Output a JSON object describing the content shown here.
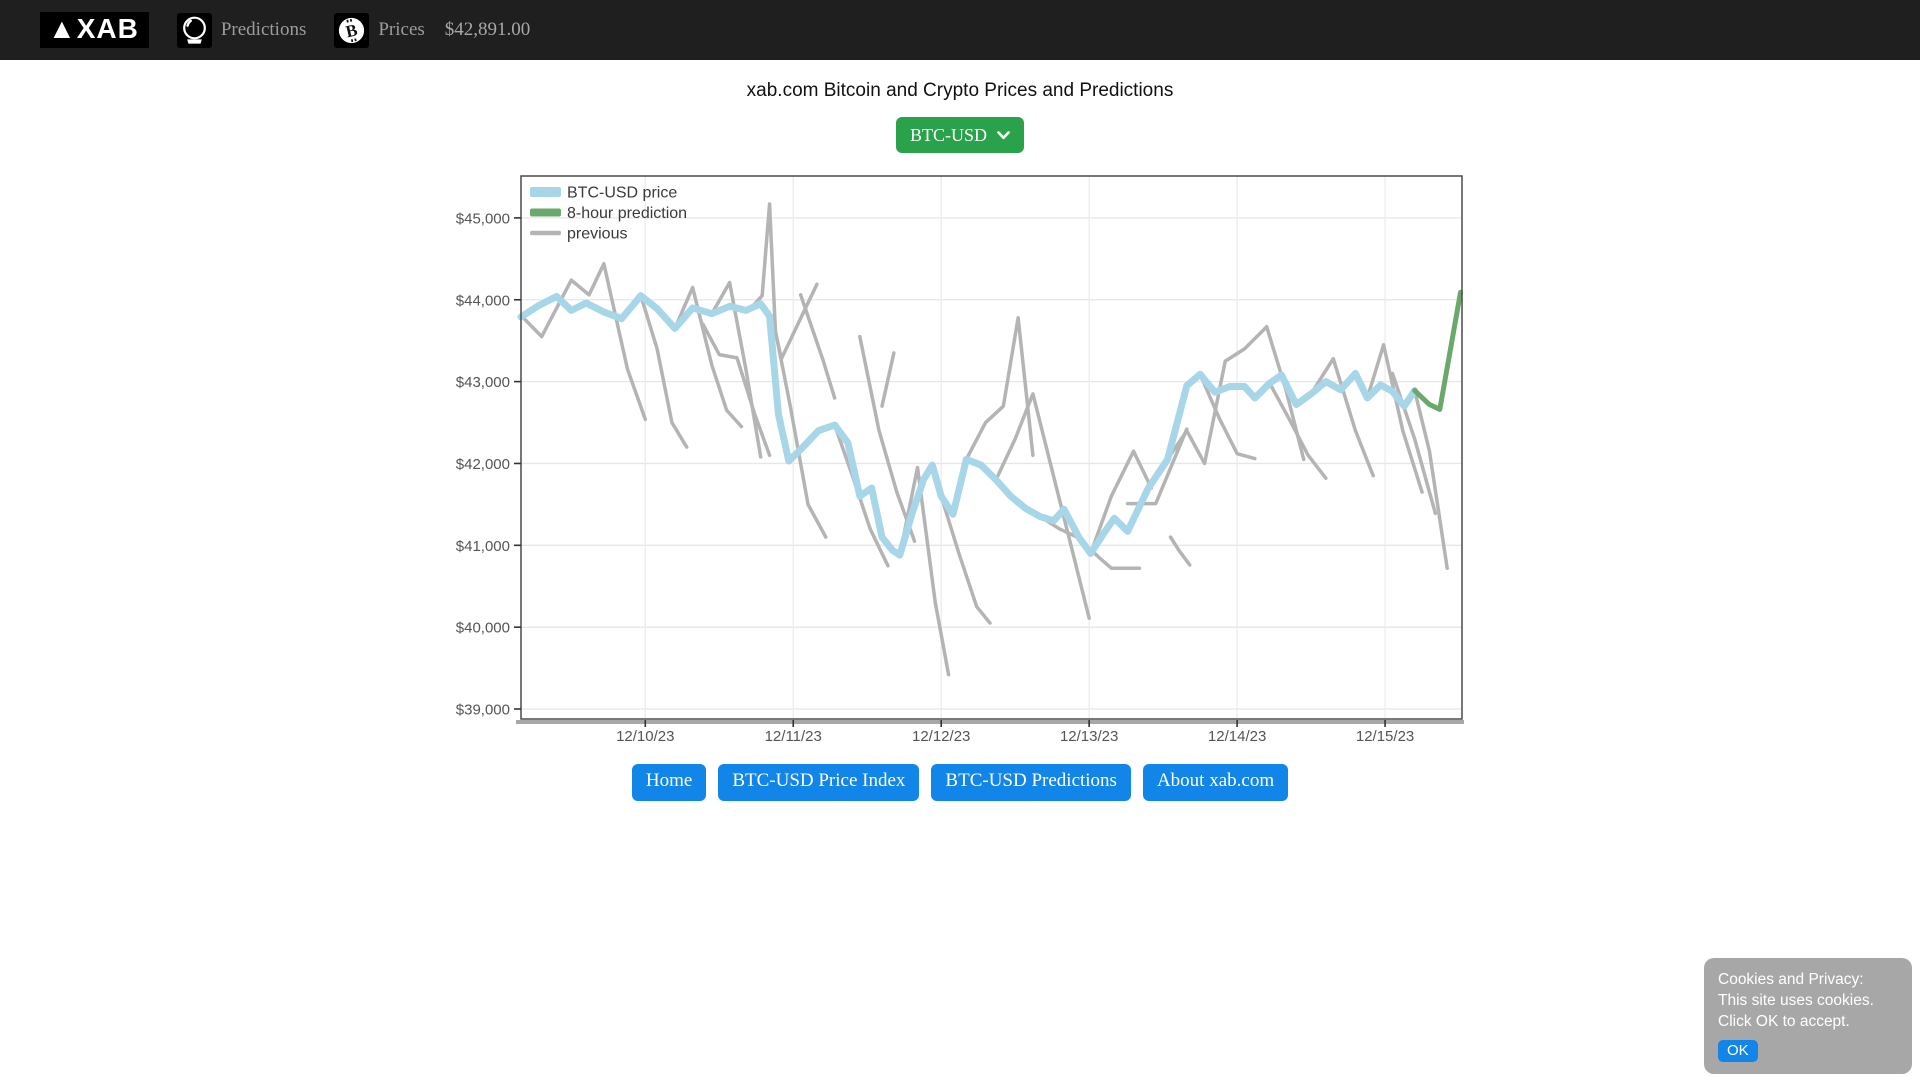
{
  "nav": {
    "logo_text": "▲XAB",
    "links": [
      {
        "label": "Predictions",
        "icon": "crystal-ball-icon"
      },
      {
        "label": "Prices",
        "icon": "bitcoin-icon"
      }
    ],
    "price": "$42,891.00"
  },
  "page": {
    "title": "xab.com Bitcoin and Crypto Prices and Predictions"
  },
  "pair_selector": {
    "value": "BTC-USD"
  },
  "footer_buttons": [
    {
      "label": "Home"
    },
    {
      "label": "BTC-USD Price Index"
    },
    {
      "label": "BTC-USD Predictions"
    },
    {
      "label": "About xab.com"
    }
  ],
  "cookie_notice": {
    "lines": [
      "Cookies and Privacy:",
      "This site uses cookies.",
      "Click OK to accept."
    ],
    "ok_label": "OK"
  },
  "colors": {
    "nav_bg": "#1f1f1f",
    "accent_green": "#2aa24b",
    "accent_blue": "#1285e9",
    "price_line": "#a8d6e9",
    "prediction_line": "#6ba86b",
    "previous_line": "#b4b4b4"
  },
  "chart_data": {
    "type": "line",
    "title": "",
    "xlabel": "",
    "ylabel": "",
    "x_domain_days": [
      0.16,
      6.52
    ],
    "y_domain": [
      38878,
      45512
    ],
    "grid": true,
    "legend_position": "top-left",
    "x_ticks": [
      {
        "day": 1,
        "label": "12/10/23"
      },
      {
        "day": 2,
        "label": "12/11/23"
      },
      {
        "day": 3,
        "label": "12/12/23"
      },
      {
        "day": 4,
        "label": "12/13/23"
      },
      {
        "day": 5,
        "label": "12/14/23"
      },
      {
        "day": 6,
        "label": "12/15/23"
      }
    ],
    "y_ticks": [
      {
        "value": 39000,
        "label": "$39,000"
      },
      {
        "value": 40000,
        "label": "$40,000"
      },
      {
        "value": 41000,
        "label": "$41,000"
      },
      {
        "value": 42000,
        "label": "$42,000"
      },
      {
        "value": 43000,
        "label": "$43,000"
      },
      {
        "value": 44000,
        "label": "$44,000"
      },
      {
        "value": 45000,
        "label": "$45,000"
      }
    ],
    "legend": [
      {
        "label": "BTC-USD price",
        "color": "#a8d6e9",
        "swatch_height": 10
      },
      {
        "label": "8-hour prediction",
        "color": "#6ba86b",
        "swatch_height": 8
      },
      {
        "label": "previous",
        "color": "#b4b4b4",
        "swatch_height": 4.5
      }
    ],
    "series": [
      {
        "name": "previous",
        "color": "#b4b4b4",
        "width": 3.5,
        "polylines": [
          [
            [
              0.17,
              43790
            ],
            [
              0.3,
              43550
            ],
            [
              0.5,
              44240
            ],
            [
              0.62,
              44060
            ],
            [
              0.72,
              44440
            ],
            [
              0.88,
              43150
            ],
            [
              1.0,
              42540
            ]
          ],
          [
            [
              0.97,
              44050
            ],
            [
              1.08,
              43400
            ],
            [
              1.18,
              42500
            ],
            [
              1.28,
              42200
            ]
          ],
          [
            [
              1.2,
              43650
            ],
            [
              1.32,
              44150
            ],
            [
              1.45,
              43200
            ],
            [
              1.55,
              42650
            ],
            [
              1.65,
              42450
            ]
          ],
          [
            [
              1.39,
              43700
            ],
            [
              1.5,
              43330
            ],
            [
              1.62,
              43290
            ],
            [
              1.74,
              42600
            ],
            [
              1.84,
              42100
            ]
          ],
          [
            [
              1.45,
              43830
            ],
            [
              1.57,
              44210
            ],
            [
              1.68,
              43150
            ],
            [
              1.78,
              42080
            ]
          ],
          [
            [
              1.7,
              43870
            ],
            [
              1.79,
              44050
            ],
            [
              1.84,
              45170
            ],
            [
              1.88,
              43600
            ],
            [
              1.92,
              43280
            ],
            [
              2.16,
              44190
            ]
          ],
          [
            [
              2.05,
              44060
            ],
            [
              2.2,
              43270
            ],
            [
              2.28,
              42800
            ]
          ],
          [
            [
              1.86,
              43800
            ],
            [
              1.98,
              42700
            ],
            [
              2.1,
              41500
            ],
            [
              2.22,
              41100
            ]
          ],
          [
            [
              2.28,
              42470
            ],
            [
              2.4,
              41850
            ],
            [
              2.52,
              41200
            ],
            [
              2.64,
              40750
            ]
          ],
          [
            [
              2.45,
              43550
            ],
            [
              2.58,
              42400
            ],
            [
              2.7,
              41650
            ],
            [
              2.82,
              41050
            ]
          ],
          [
            [
              2.6,
              42700
            ],
            [
              2.68,
              43350
            ]
          ],
          [
            [
              2.72,
              40880
            ],
            [
              2.84,
              41950
            ],
            [
              2.96,
              40300
            ],
            [
              3.05,
              39420
            ]
          ],
          [
            [
              3.0,
              41600
            ],
            [
              3.12,
              40900
            ],
            [
              3.24,
              40250
            ],
            [
              3.33,
              40050
            ]
          ],
          [
            [
              3.17,
              42050
            ],
            [
              3.3,
              42500
            ],
            [
              3.42,
              42700
            ],
            [
              3.52,
              43780
            ],
            [
              3.62,
              42100
            ]
          ],
          [
            [
              3.37,
              41800
            ],
            [
              3.5,
              42300
            ],
            [
              3.62,
              42850
            ],
            [
              3.87,
              41050
            ],
            [
              4.0,
              40110
            ]
          ],
          [
            [
              3.67,
              41350
            ],
            [
              3.8,
              41200
            ],
            [
              3.92,
              41100
            ],
            [
              4.08,
              40830
            ],
            [
              4.15,
              40720
            ],
            [
              4.34,
              40720
            ]
          ],
          [
            [
              4.55,
              41100
            ],
            [
              4.61,
              40930
            ],
            [
              4.68,
              40760
            ]
          ],
          [
            [
              4.01,
              40900
            ],
            [
              4.15,
              41600
            ],
            [
              4.3,
              42150
            ],
            [
              4.42,
              41700
            ]
          ],
          [
            [
              4.26,
              41510
            ],
            [
              4.45,
              41510
            ],
            [
              4.66,
              42420
            ]
          ],
          [
            [
              4.53,
              42050
            ],
            [
              4.66,
              42400
            ],
            [
              4.78,
              42000
            ],
            [
              4.92,
              43250
            ],
            [
              5.05,
              43400
            ],
            [
              5.2,
              43670
            ],
            [
              5.33,
              42900
            ],
            [
              5.45,
              42050
            ]
          ],
          [
            [
              4.75,
              43090
            ],
            [
              4.88,
              42550
            ],
            [
              5.0,
              42120
            ],
            [
              5.12,
              42060
            ]
          ],
          [
            [
              5.22,
              42980
            ],
            [
              5.35,
              42550
            ],
            [
              5.48,
              42100
            ],
            [
              5.6,
              41820
            ]
          ],
          [
            [
              5.5,
              42850
            ],
            [
              5.65,
              43280
            ],
            [
              5.8,
              42400
            ],
            [
              5.92,
              41850
            ]
          ],
          [
            [
              5.88,
              42800
            ],
            [
              5.99,
              43450
            ],
            [
              6.12,
              42400
            ],
            [
              6.25,
              41650
            ]
          ],
          [
            [
              6.05,
              43100
            ],
            [
              6.2,
              42300
            ],
            [
              6.34,
              41390
            ]
          ],
          [
            [
              6.2,
              42891
            ],
            [
              6.3,
              42150
            ],
            [
              6.42,
              40720
            ]
          ]
        ]
      },
      {
        "name": "BTC-USD price",
        "color": "#a8d6e9",
        "width": 7,
        "points": [
          [
            0.16,
            43790
          ],
          [
            0.28,
            43930
          ],
          [
            0.4,
            44040
          ],
          [
            0.5,
            43870
          ],
          [
            0.6,
            43960
          ],
          [
            0.72,
            43850
          ],
          [
            0.84,
            43770
          ],
          [
            0.97,
            44050
          ],
          [
            1.08,
            43890
          ],
          [
            1.2,
            43650
          ],
          [
            1.32,
            43900
          ],
          [
            1.45,
            43830
          ],
          [
            1.57,
            43920
          ],
          [
            1.68,
            43870
          ],
          [
            1.78,
            43950
          ],
          [
            1.84,
            43800
          ],
          [
            1.9,
            42600
          ],
          [
            1.97,
            42030
          ],
          [
            2.05,
            42170
          ],
          [
            2.17,
            42400
          ],
          [
            2.28,
            42470
          ],
          [
            2.37,
            42250
          ],
          [
            2.45,
            41600
          ],
          [
            2.53,
            41700
          ],
          [
            2.6,
            41100
          ],
          [
            2.67,
            40940
          ],
          [
            2.72,
            40880
          ],
          [
            2.8,
            41370
          ],
          [
            2.88,
            41800
          ],
          [
            2.94,
            41980
          ],
          [
            3.0,
            41600
          ],
          [
            3.08,
            41380
          ],
          [
            3.17,
            42050
          ],
          [
            3.27,
            41980
          ],
          [
            3.37,
            41800
          ],
          [
            3.47,
            41600
          ],
          [
            3.57,
            41450
          ],
          [
            3.67,
            41350
          ],
          [
            3.76,
            41300
          ],
          [
            3.83,
            41440
          ],
          [
            3.93,
            41100
          ],
          [
            4.01,
            40900
          ],
          [
            4.1,
            41150
          ],
          [
            4.17,
            41330
          ],
          [
            4.26,
            41170
          ],
          [
            4.4,
            41700
          ],
          [
            4.53,
            42050
          ],
          [
            4.66,
            42950
          ],
          [
            4.75,
            43090
          ],
          [
            4.85,
            42870
          ],
          [
            4.95,
            42940
          ],
          [
            5.05,
            42940
          ],
          [
            5.12,
            42800
          ],
          [
            5.22,
            42980
          ],
          [
            5.3,
            43080
          ],
          [
            5.4,
            42720
          ],
          [
            5.5,
            42850
          ],
          [
            5.6,
            43000
          ],
          [
            5.7,
            42900
          ],
          [
            5.8,
            43100
          ],
          [
            5.88,
            42800
          ],
          [
            5.97,
            42960
          ],
          [
            6.05,
            42880
          ],
          [
            6.13,
            42700
          ],
          [
            6.2,
            42891
          ]
        ]
      },
      {
        "name": "8-hour prediction",
        "color": "#6ba86b",
        "width": 5,
        "points": [
          [
            6.2,
            42891
          ],
          [
            6.3,
            42720
          ],
          [
            6.37,
            42660
          ],
          [
            6.51,
            44090
          ]
        ]
      }
    ]
  }
}
